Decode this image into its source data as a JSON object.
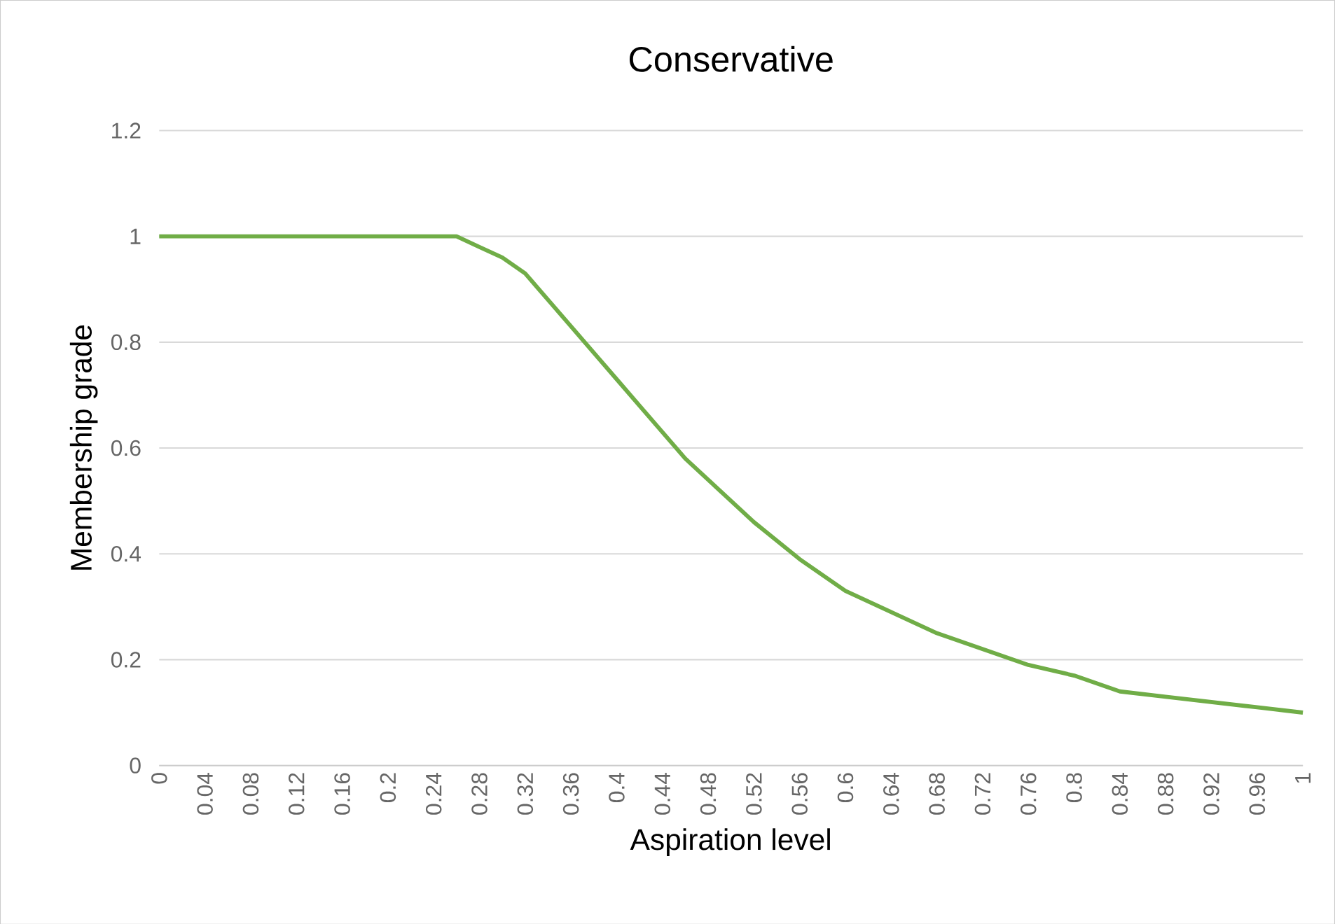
{
  "chart_data": {
    "type": "line",
    "title": "Conservative",
    "xlabel": "Aspiration level",
    "ylabel": "Membership grade",
    "x": [
      0,
      0.04,
      0.08,
      0.12,
      0.16,
      0.2,
      0.24,
      0.26,
      0.28,
      0.3,
      0.32,
      0.34,
      0.36,
      0.38,
      0.4,
      0.42,
      0.44,
      0.46,
      0.48,
      0.5,
      0.52,
      0.56,
      0.6,
      0.64,
      0.68,
      0.72,
      0.76,
      0.8,
      0.84,
      0.88,
      0.92,
      0.96,
      1
    ],
    "series": [
      {
        "color": "#70ad47",
        "values": [
          1,
          1,
          1,
          1,
          1,
          1,
          1,
          1,
          0.98,
          0.96,
          0.93,
          0.88,
          0.83,
          0.78,
          0.73,
          0.68,
          0.63,
          0.58,
          0.54,
          0.5,
          0.46,
          0.39,
          0.33,
          0.29,
          0.25,
          0.22,
          0.19,
          0.17,
          0.14,
          0.13,
          0.12,
          0.11,
          0.1
        ]
      }
    ],
    "xlim": [
      0,
      1
    ],
    "ylim": [
      0,
      1.2
    ],
    "xticks": [
      0,
      0.04,
      0.08,
      0.12,
      0.16,
      0.2,
      0.24,
      0.28,
      0.32,
      0.36,
      0.4,
      0.44,
      0.48,
      0.52,
      0.56,
      0.6,
      0.64,
      0.68,
      0.72,
      0.76,
      0.8,
      0.84,
      0.88,
      0.92,
      0.96,
      1
    ],
    "yticks": [
      0,
      0.2,
      0.4,
      0.6,
      0.8,
      1,
      1.2
    ],
    "grid": "y",
    "marker": "none",
    "line_style": "solid"
  }
}
